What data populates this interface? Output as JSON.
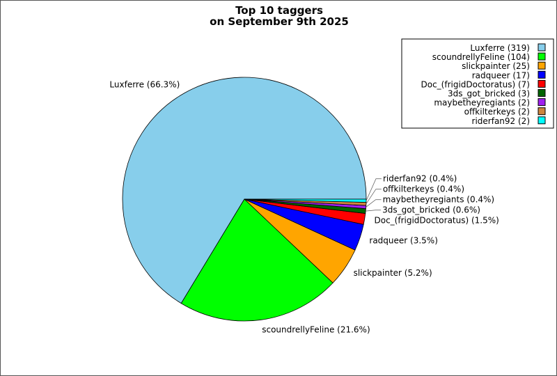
{
  "chart_data": {
    "type": "pie",
    "title": [
      "Top 10 taggers",
      "on September 9th 2025"
    ],
    "direction": "counterclockwise",
    "start_angle_deg": 0,
    "legend_position": "top-right",
    "slices": [
      {
        "name": "Luxferre",
        "value": 319,
        "label": "Luxferre (66.3%)",
        "legend": "Luxferre (319)",
        "color": "#87ceeb"
      },
      {
        "name": "scoundrellyFeline",
        "value": 104,
        "label": "scoundrellyFeline (21.6%)",
        "legend": "scoundrellyFeline (104)",
        "color": "#00ff00"
      },
      {
        "name": "slickpainter",
        "value": 25,
        "label": "slickpainter (5.2%)",
        "legend": "slickpainter (25)",
        "color": "#ffa500"
      },
      {
        "name": "radqueer",
        "value": 17,
        "label": "radqueer (3.5%)",
        "legend": "radqueer (17)",
        "color": "#0000ff"
      },
      {
        "name": "Doc_(frigidDoctoratus)",
        "value": 7,
        "label": "Doc_(frigidDoctoratus) (1.5%)",
        "legend": "Doc_(frigidDoctoratus) (7)",
        "color": "#ff0000"
      },
      {
        "name": "3ds_got_bricked",
        "value": 3,
        "label": "3ds_got_bricked (0.6%)",
        "legend": "3ds_got_bricked (3)",
        "color": "#006400"
      },
      {
        "name": "maybetheyregiants",
        "value": 2,
        "label": "maybetheyregiants (0.4%)",
        "legend": "maybetheyregiants (2)",
        "color": "#a020f0"
      },
      {
        "name": "offkilterkeys",
        "value": 2,
        "label": "offkilterkeys (0.4%)",
        "legend": "offkilterkeys (2)",
        "color": "#cd853f"
      },
      {
        "name": "riderfan92",
        "value": 2,
        "label": "riderfan92 (0.4%)",
        "legend": "riderfan92 (2)",
        "color": "#00ffff"
      }
    ]
  }
}
